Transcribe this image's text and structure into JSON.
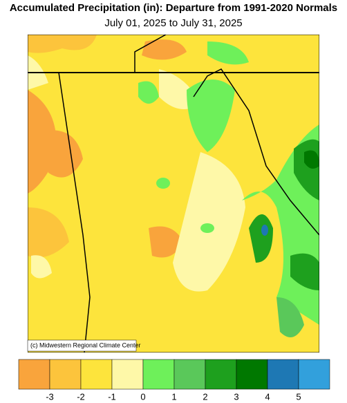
{
  "header": {
    "title": "Accumulated Precipitation (in): Departure from 1991-2020 Normals",
    "subtitle": "July 01, 2025 to July 31, 2025"
  },
  "map": {
    "credit": "(c) Midwestern Regional Climate Center"
  },
  "legend": {
    "colors": [
      "#f9a43c",
      "#fcc43c",
      "#fde43c",
      "#fef8a8",
      "#6ef05a",
      "#5ac85a",
      "#1ea01e",
      "#007800",
      "#1e78b4",
      "#32a0dc"
    ],
    "ticks": [
      -3,
      -2,
      -1,
      0,
      1,
      2,
      3,
      4,
      5
    ]
  }
}
